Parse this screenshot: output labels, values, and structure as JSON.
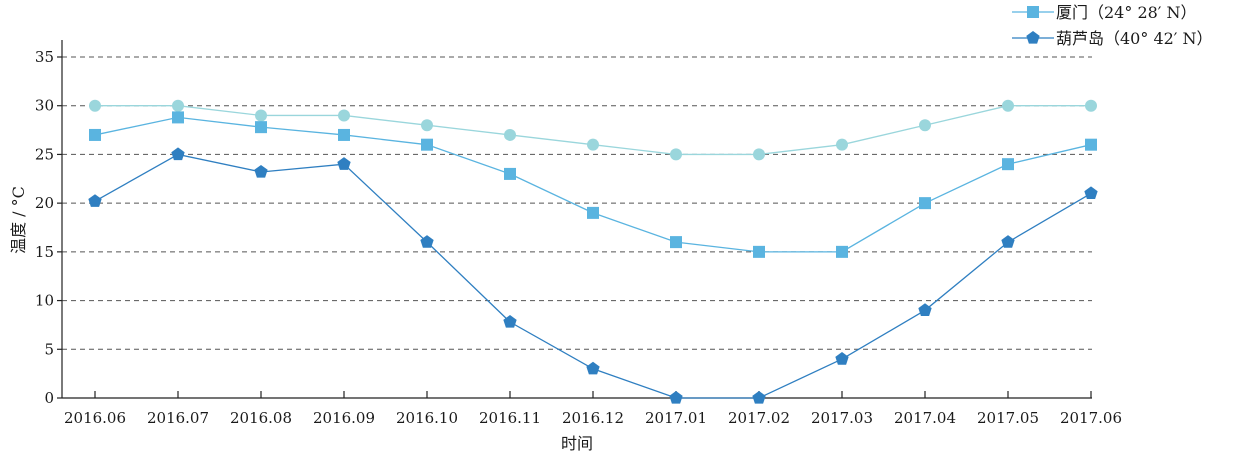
{
  "chart_data": {
    "type": "line",
    "title": "",
    "xlabel": "时间",
    "ylabel": "温度 / °C",
    "categories": [
      "2016.06",
      "2016.07",
      "2016.08",
      "2016.09",
      "2016.10",
      "2016.11",
      "2016.12",
      "2017.01",
      "2017.02",
      "2017.03",
      "2017.04",
      "2017.05",
      "2017.06"
    ],
    "yticks": [
      0,
      5,
      10,
      15,
      20,
      25,
      30,
      35
    ],
    "ylim": [
      0,
      35
    ],
    "grid": "horizontal dashed",
    "legend_position": "top-right",
    "series": [
      {
        "color": "#9ad6dc",
        "marker": "circle",
        "values": [
          30,
          30,
          29,
          29,
          28,
          27,
          26,
          25,
          25,
          26,
          28,
          30,
          30
        ]
      },
      {
        "name": "厦门（24° 28′ N）",
        "color": "#5ab4e0",
        "marker": "square",
        "values": [
          27,
          28.8,
          27.8,
          27,
          26,
          23,
          19,
          16,
          15,
          15,
          20,
          24,
          26
        ]
      },
      {
        "name": "葫芦岛（40° 42′ N）",
        "color": "#2f7fc1",
        "marker": "pentagon",
        "values": [
          20.2,
          25,
          23.2,
          24,
          16,
          7.8,
          3,
          0,
          0,
          4,
          9,
          16,
          21
        ]
      }
    ]
  }
}
